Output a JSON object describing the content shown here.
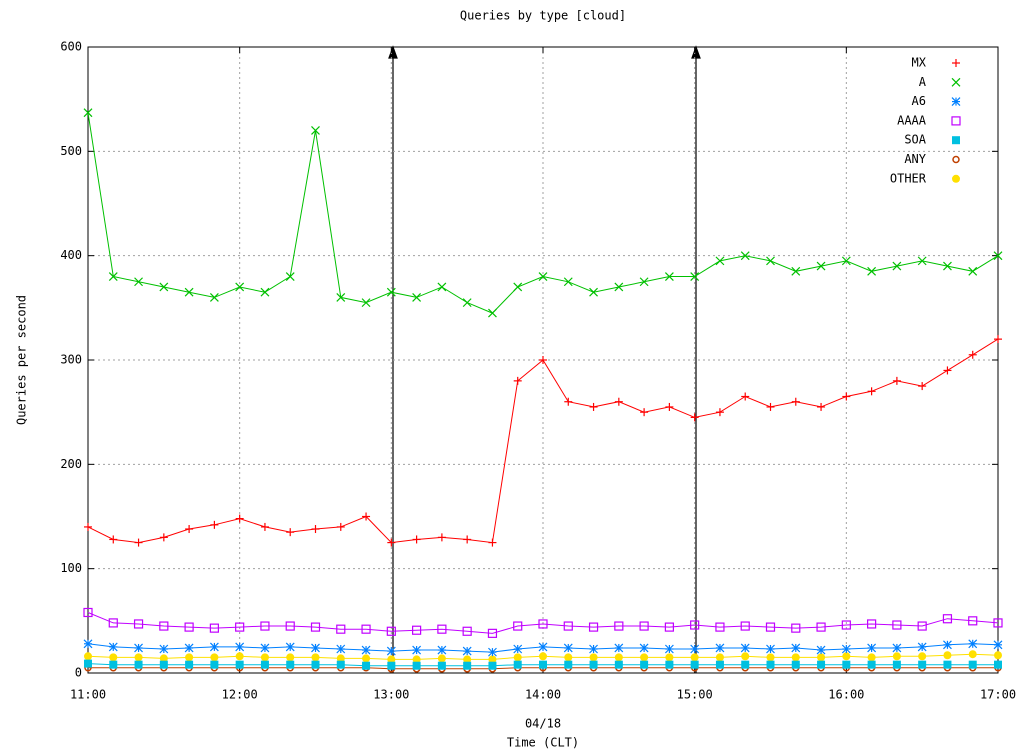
{
  "chart_data": {
    "type": "line",
    "title": "Queries by type [cloud]",
    "subtitle": "04/18",
    "x_label": "Time (CLT)",
    "y_label": "Queries per second",
    "categories": [
      "11:00",
      null,
      null,
      null,
      null,
      null,
      "12:00",
      null,
      null,
      null,
      null,
      null,
      "13:00",
      null,
      null,
      null,
      null,
      null,
      "14:00",
      null,
      null,
      null,
      null,
      null,
      "15:00",
      null,
      null,
      null,
      null,
      null,
      "16:00",
      null,
      null,
      null,
      null,
      null,
      "17:00"
    ],
    "ylim": [
      0,
      600
    ],
    "yticks": [
      0,
      100,
      200,
      300,
      400,
      500,
      600
    ],
    "grid": true,
    "legend": "top-right",
    "series": [
      {
        "name": "MX",
        "color": "#ff0000",
        "marker": "plus",
        "values": [
          140,
          128,
          125,
          130,
          138,
          142,
          148,
          140,
          135,
          138,
          140,
          150,
          125,
          128,
          130,
          128,
          125,
          280,
          300,
          260,
          255,
          260,
          250,
          255,
          245,
          250,
          265,
          255,
          260,
          255,
          265,
          270,
          280,
          275,
          290,
          305,
          320
        ]
      },
      {
        "name": "A",
        "color": "#00c000",
        "marker": "cross",
        "values": [
          537,
          380,
          375,
          370,
          365,
          360,
          370,
          365,
          380,
          520,
          360,
          355,
          365,
          360,
          370,
          355,
          345,
          370,
          380,
          375,
          365,
          370,
          375,
          380,
          380,
          395,
          400,
          395,
          385,
          390,
          395,
          385,
          390,
          395,
          390,
          385,
          400
        ]
      },
      {
        "name": "A6",
        "color": "#0080ff",
        "marker": "star",
        "values": [
          28,
          25,
          24,
          23,
          24,
          25,
          25,
          24,
          25,
          24,
          23,
          22,
          21,
          22,
          22,
          21,
          20,
          23,
          25,
          24,
          23,
          24,
          24,
          23,
          23,
          24,
          24,
          23,
          24,
          22,
          23,
          24,
          24,
          25,
          27,
          28,
          27
        ]
      },
      {
        "name": "AAAA",
        "color": "#c000ff",
        "marker": "box",
        "values": [
          58,
          48,
          47,
          45,
          44,
          43,
          44,
          45,
          45,
          44,
          42,
          42,
          40,
          41,
          42,
          40,
          38,
          45,
          47,
          45,
          44,
          45,
          45,
          44,
          46,
          44,
          45,
          44,
          43,
          44,
          46,
          47,
          46,
          45,
          52,
          50,
          48
        ]
      },
      {
        "name": "SOA",
        "color": "#00c0e0",
        "marker": "fbox",
        "values": [
          9,
          8,
          8,
          8,
          8,
          8,
          8,
          8,
          8,
          8,
          8,
          7,
          7,
          7,
          7,
          7,
          7,
          8,
          8,
          8,
          8,
          8,
          8,
          8,
          8,
          8,
          8,
          8,
          8,
          8,
          8,
          8,
          8,
          8,
          8,
          8,
          8
        ]
      },
      {
        "name": "ANY",
        "color": "#c04000",
        "marker": "circle",
        "values": [
          5,
          5,
          5,
          5,
          5,
          5,
          5,
          5,
          5,
          5,
          5,
          5,
          4,
          4,
          4,
          4,
          4,
          5,
          5,
          5,
          5,
          5,
          5,
          5,
          5,
          5,
          5,
          5,
          5,
          5,
          5,
          5,
          5,
          5,
          5,
          5,
          5
        ]
      },
      {
        "name": "OTHER",
        "color": "#ffe000",
        "marker": "fcircle",
        "values": [
          16,
          15,
          15,
          14,
          15,
          15,
          16,
          15,
          15,
          15,
          14,
          14,
          13,
          13,
          14,
          13,
          13,
          15,
          16,
          15,
          15,
          15,
          15,
          15,
          15,
          15,
          16,
          15,
          15,
          15,
          16,
          15,
          16,
          16,
          17,
          18,
          17
        ]
      }
    ]
  }
}
